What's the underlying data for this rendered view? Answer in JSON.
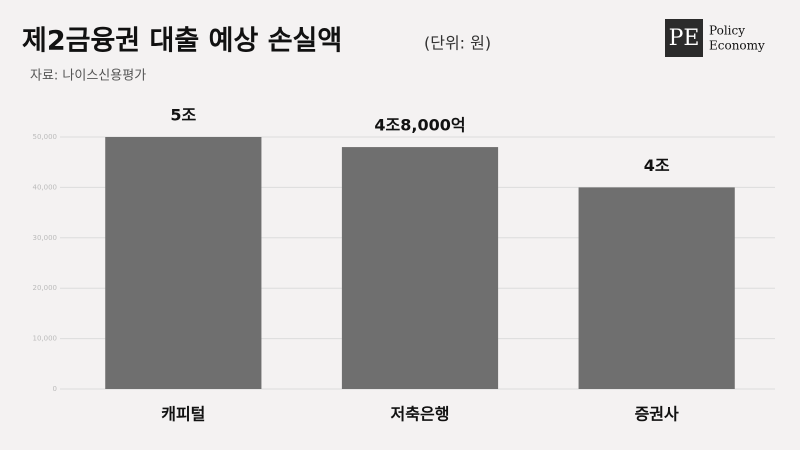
{
  "chart_data": {
    "type": "bar",
    "title": "제2금융권 대출 예상 손실액",
    "subtitle": "(단위: 원)",
    "source": "자료: 나이스신용평가",
    "logo": {
      "mark": "PE",
      "line1": "Policy",
      "line2": "Economy"
    },
    "categories": [
      "캐피털",
      "저축은행",
      "증권사"
    ],
    "values": [
      50000,
      48000,
      40000
    ],
    "value_labels": [
      "5조",
      "4조8,000억",
      "4조"
    ],
    "color": "#6f6f6f",
    "ylim": [
      0,
      50000
    ],
    "yticks": [
      0,
      {
        "value": 10000,
        "label": "10,000"
      },
      {
        "value": 20000,
        "label": "20,000"
      },
      {
        "value": 30000,
        "label": "30,000"
      },
      {
        "value": 40000,
        "label": "40,000"
      },
      {
        "value": 50000,
        "label": "50,000"
      }
    ],
    "grid": true
  }
}
